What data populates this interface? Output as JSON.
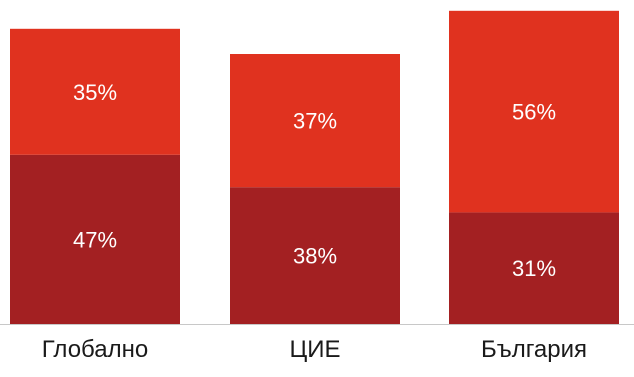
{
  "chart_data": {
    "type": "bar",
    "stacked": true,
    "categories": [
      "Глобално",
      "ЦИЕ",
      "България"
    ],
    "series": [
      {
        "values": [
          47,
          38,
          31
        ],
        "labels": [
          "47%",
          "38%",
          "31%"
        ],
        "color": "#a32022"
      },
      {
        "values": [
          35,
          37,
          56
        ],
        "labels": [
          "35%",
          "37%",
          "56%"
        ],
        "color": "#e0321f"
      }
    ],
    "ylim": [
      0,
      87
    ],
    "grid": false,
    "legend": "none",
    "title": "",
    "xlabel": "",
    "ylabel": ""
  },
  "colors": {
    "axis": "#c8c8c8",
    "label_text": "#ffffff",
    "category_text": "#1a1a1a"
  }
}
